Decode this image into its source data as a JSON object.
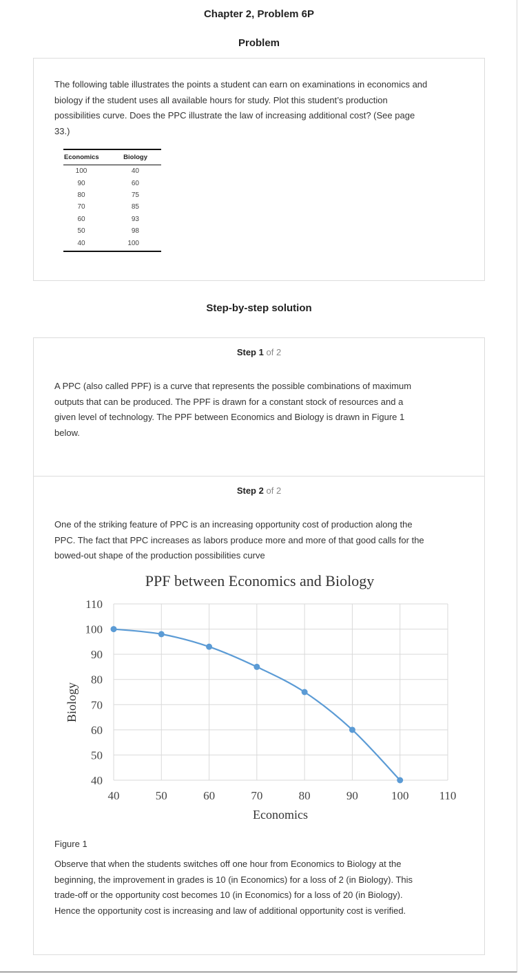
{
  "page_title": "Chapter 2, Problem 6P",
  "problem": {
    "heading": "Problem",
    "lines": [
      "The following table illustrates the points a student can earn on examinations in economics and",
      "biology if the student uses all available hours for study. Plot this student’s production",
      "possibilities curve. Does the PPC illustrate the law of increasing additional cost? (See page",
      "33.)"
    ],
    "table": {
      "headers": [
        "Economics",
        "Biology"
      ],
      "rows": [
        [
          "100",
          "40"
        ],
        [
          "90",
          "60"
        ],
        [
          "80",
          "75"
        ],
        [
          "70",
          "85"
        ],
        [
          "60",
          "93"
        ],
        [
          "50",
          "98"
        ],
        [
          "40",
          "100"
        ]
      ]
    }
  },
  "solution": {
    "heading": "Step-by-step solution",
    "step1": {
      "label": "Step",
      "number": "1",
      "of_text": "of 2",
      "lines": [
        "A PPC (also called PPF) is a curve that represents the possible combinations of maximum",
        "outputs that can be produced. The PPF is drawn for a constant stock of resources and a",
        "given level of technology. The PPF between Economics and Biology is drawn in Figure 1",
        "below."
      ]
    },
    "step2": {
      "label": "Step",
      "number": "2",
      "of_text": "of 2",
      "lines": [
        "One of the striking feature of PPC is an increasing opportunity cost of production along the",
        "PPC. The fact that PPC increases as labors produce more and more of that good calls for the",
        "bowed-out shape of the production possibilities curve"
      ],
      "figure_caption": "Figure 1",
      "conclusion_lines": [
        "Observe that when the students switches off one hour from Economics to Biology at the",
        "beginning, the improvement in grades is 10 (in Economics) for a loss of 2 (in Biology). This",
        "trade-off or the opportunity cost becomes 10 (in Economics) for a loss of 20 (in Biology).",
        "Hence the opportunity cost is increasing and law of additional opportunity cost is verified."
      ]
    }
  },
  "chart_data": {
    "type": "scatter",
    "title": "PPF between Economics and Biology",
    "xlabel": "Economics",
    "ylabel": "Biology",
    "xlim": [
      40,
      110
    ],
    "ylim": [
      40,
      110
    ],
    "xticks": [
      "40",
      "50",
      "60",
      "70",
      "80",
      "90",
      "100",
      "110"
    ],
    "yticks": [
      "40",
      "50",
      "60",
      "70",
      "80",
      "90",
      "100",
      "110"
    ],
    "grid": true,
    "smooth_line": true,
    "series_color": "#5b9bd5",
    "x": [
      40,
      50,
      60,
      70,
      80,
      90,
      100
    ],
    "y": [
      100,
      98,
      93,
      85,
      75,
      60,
      40
    ]
  }
}
